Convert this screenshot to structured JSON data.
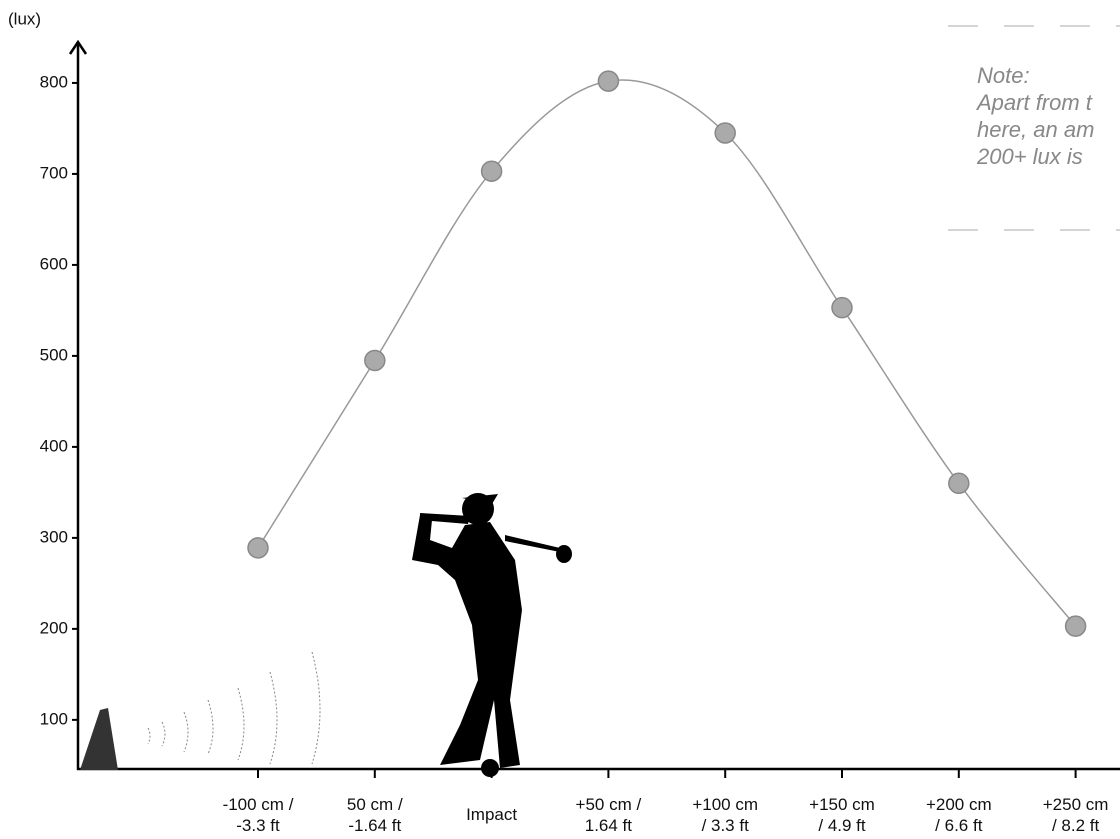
{
  "chart_data": {
    "type": "line",
    "y_label": "(lux)",
    "categories": [
      "-100 cm /\n-3.3 ft",
      "50 cm /\n-1.64 ft",
      "Impact",
      "+50 cm /\n1.64 ft",
      "+100 cm\n/ 3.3 ft",
      "+150 cm\n/ 4.9 ft",
      "+200 cm\n/ 6.6 ft",
      "+250 cm\n/ 8.2 ft"
    ],
    "values": [
      289,
      495,
      703,
      802,
      745,
      553,
      360,
      203
    ],
    "color": "#999999",
    "ylim": [
      46,
      845
    ],
    "yticks": [
      100,
      200,
      300,
      400,
      500,
      600,
      700,
      800
    ],
    "note": [
      "Note:",
      "Apart from t",
      "here, an am",
      "200+ lux is"
    ]
  }
}
